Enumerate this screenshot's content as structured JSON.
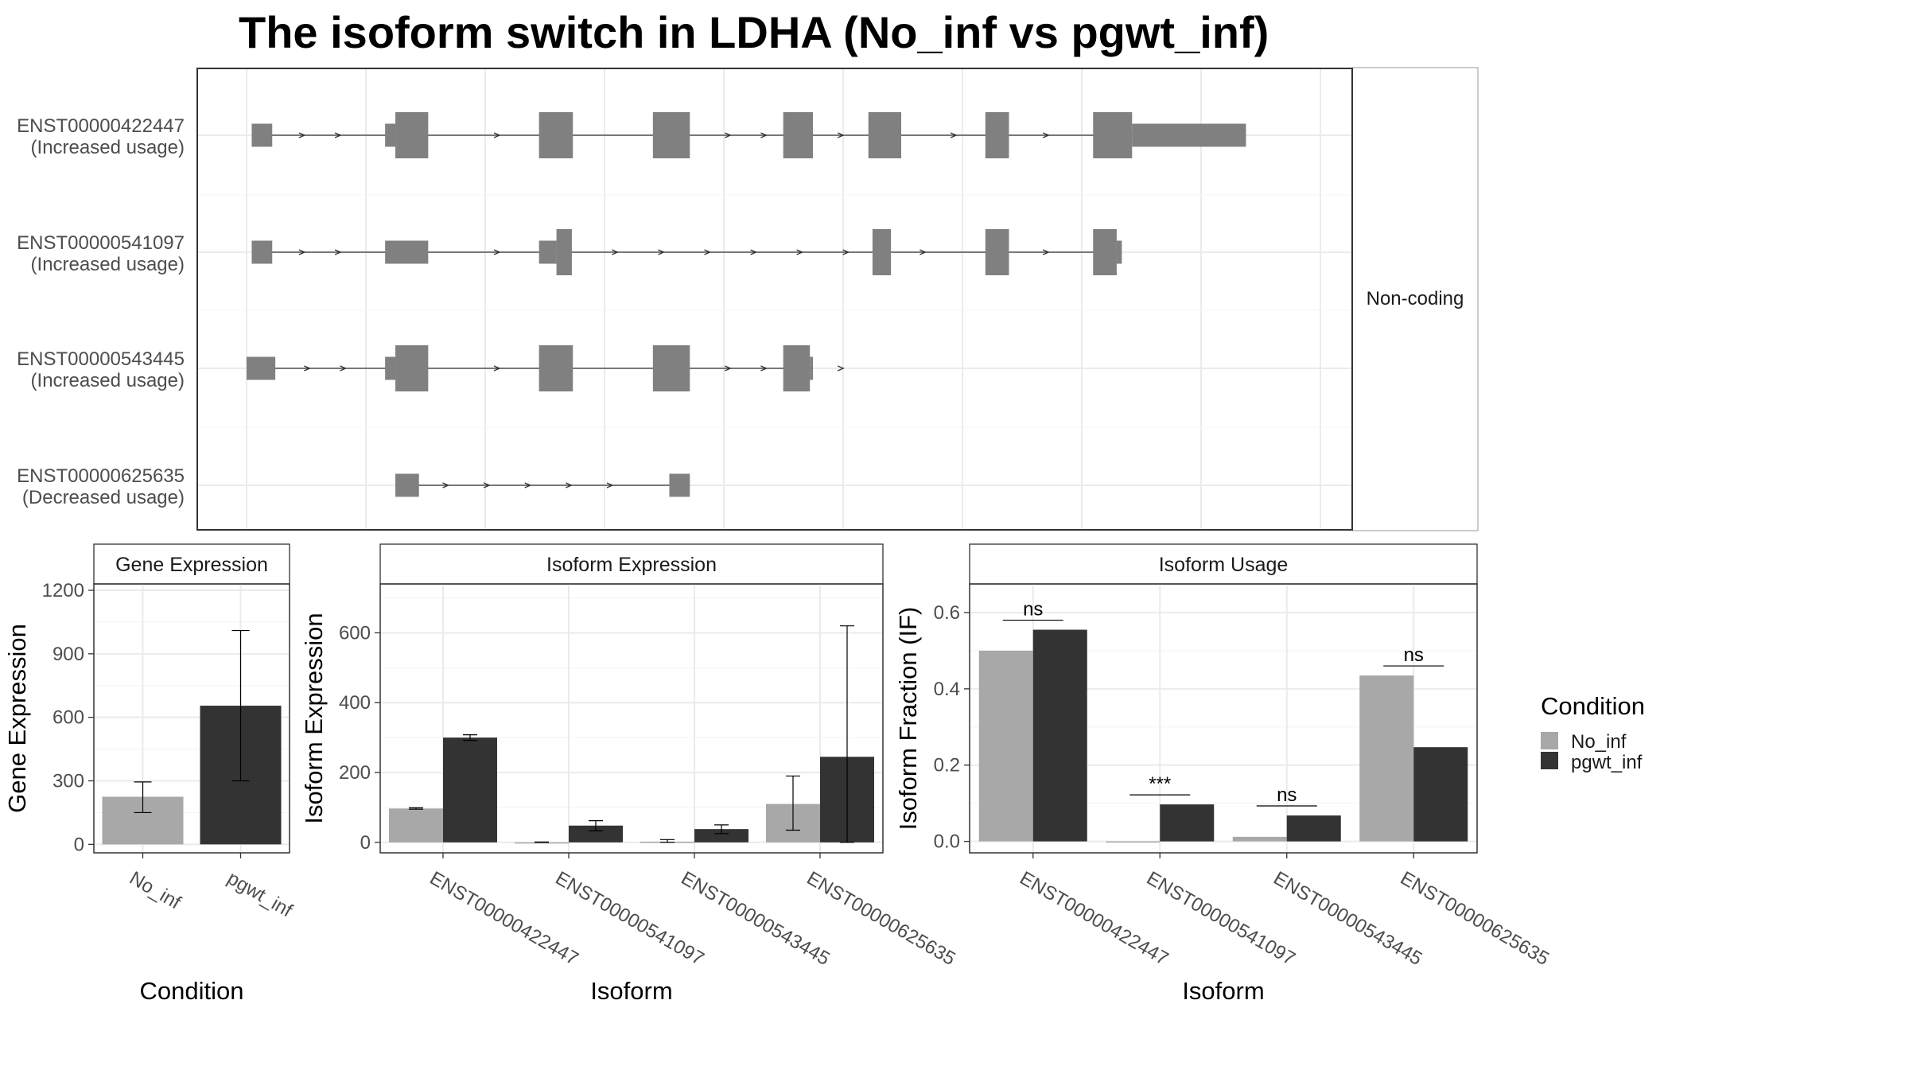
{
  "title": "The isoform switch in LDHA (No_inf vs pgwt_inf)",
  "colors": {
    "exon": "#808080",
    "no_inf": "#a8a8a8",
    "pgwt_inf": "#333333",
    "grid": "#ebebeb",
    "frame": "#333333"
  },
  "chart_data": [
    {
      "type": "gene-structure",
      "strip_label": "Non-coding",
      "genomic_range": [
        0,
        1000
      ],
      "transcripts": [
        {
          "id": "ENST00000422447",
          "status": "(Increased usage)",
          "exons": [
            {
              "start": 5,
              "end": 25,
              "height": "narrow"
            },
            {
              "start": 135,
              "end": 145,
              "height": "narrow"
            },
            {
              "start": 145,
              "end": 177,
              "height": "wide"
            },
            {
              "start": 285,
              "end": 318,
              "height": "wide"
            },
            {
              "start": 396,
              "end": 432,
              "height": "wide"
            },
            {
              "start": 523,
              "end": 552,
              "height": "wide"
            },
            {
              "start": 606,
              "end": 638,
              "height": "wide"
            },
            {
              "start": 720,
              "end": 743,
              "height": "wide"
            },
            {
              "start": 825,
              "end": 863,
              "height": "wide"
            },
            {
              "start": 863,
              "end": 974,
              "height": "narrow"
            }
          ],
          "arrows": [
            55,
            90,
            245,
            470,
            505,
            580,
            690,
            780
          ]
        },
        {
          "id": "ENST00000541097",
          "status": "(Increased usage)",
          "exons": [
            {
              "start": 5,
              "end": 25,
              "height": "narrow"
            },
            {
              "start": 135,
              "end": 177,
              "height": "narrow"
            },
            {
              "start": 285,
              "end": 302,
              "height": "narrow"
            },
            {
              "start": 302,
              "end": 317,
              "height": "wide"
            },
            {
              "start": 610,
              "end": 628,
              "height": "wide"
            },
            {
              "start": 720,
              "end": 743,
              "height": "wide"
            },
            {
              "start": 825,
              "end": 848,
              "height": "wide"
            },
            {
              "start": 848,
              "end": 853,
              "height": "narrow"
            }
          ],
          "arrows": [
            55,
            90,
            245,
            360,
            405,
            450,
            495,
            540,
            585,
            660,
            780
          ]
        },
        {
          "id": "ENST00000543445",
          "status": "(Increased usage)",
          "exons": [
            {
              "start": 0,
              "end": 28,
              "height": "narrow"
            },
            {
              "start": 135,
              "end": 145,
              "height": "narrow"
            },
            {
              "start": 145,
              "end": 177,
              "height": "wide"
            },
            {
              "start": 285,
              "end": 318,
              "height": "wide"
            },
            {
              "start": 396,
              "end": 432,
              "height": "wide"
            },
            {
              "start": 523,
              "end": 549,
              "height": "wide"
            },
            {
              "start": 549,
              "end": 552,
              "height": "narrow"
            }
          ],
          "arrows": [
            60,
            95,
            245,
            470,
            505,
            580
          ]
        },
        {
          "id": "ENST00000625635",
          "status": "(Decreased usage)",
          "exons": [
            {
              "start": 145,
              "end": 168,
              "height": "narrow"
            },
            {
              "start": 412,
              "end": 432,
              "height": "narrow"
            }
          ],
          "arrows": [
            195,
            235,
            275,
            315,
            355
          ]
        }
      ]
    },
    {
      "type": "bar",
      "title": "Gene Expression",
      "xlabel": "Condition",
      "ylabel": "Gene Expression",
      "categories": [
        "No_inf",
        "pgwt_inf"
      ],
      "values": [
        225,
        655
      ],
      "error_low": [
        150,
        300
      ],
      "error_high": [
        295,
        1010
      ],
      "ylim": [
        -40,
        1230
      ],
      "yticks": [
        "0",
        "300",
        "600",
        "900",
        "1200"
      ]
    },
    {
      "type": "bar",
      "title": "Isoform Expression",
      "xlabel": "Isoform",
      "ylabel": "Isoform Expression",
      "categories": [
        "ENST00000422447",
        "ENST00000541097",
        "ENST00000543445",
        "ENST00000625635"
      ],
      "series": [
        {
          "name": "No_inf",
          "values": [
            97,
            0,
            2,
            110
          ],
          "error_low": [
            95,
            0,
            0,
            35
          ],
          "error_high": [
            99,
            1,
            8,
            190
          ]
        },
        {
          "name": "pgwt_inf",
          "values": [
            300,
            48,
            38,
            245
          ],
          "error_low": [
            292,
            33,
            25,
            0
          ],
          "error_high": [
            308,
            62,
            50,
            620
          ]
        }
      ],
      "ylim": [
        -30,
        740
      ],
      "yticks": [
        "0",
        "200",
        "400",
        "600"
      ]
    },
    {
      "type": "bar",
      "title": "Isoform Usage",
      "xlabel": "Isoform",
      "ylabel": "Isoform Fraction (IF)",
      "categories": [
        "ENST00000422447",
        "ENST00000541097",
        "ENST00000543445",
        "ENST00000625635"
      ],
      "series": [
        {
          "name": "No_inf",
          "values": [
            0.5,
            0.0,
            0.012,
            0.435
          ]
        },
        {
          "name": "pgwt_inf",
          "values": [
            0.555,
            0.097,
            0.068,
            0.247
          ]
        }
      ],
      "significance": [
        "ns",
        "***",
        "ns",
        "ns"
      ],
      "ylim": [
        -0.03,
        0.675
      ],
      "yticks": [
        "0.0",
        "0.2",
        "0.4",
        "0.6"
      ]
    }
  ],
  "legend": {
    "title": "Condition",
    "items": [
      "No_inf",
      "pgwt_inf"
    ]
  }
}
